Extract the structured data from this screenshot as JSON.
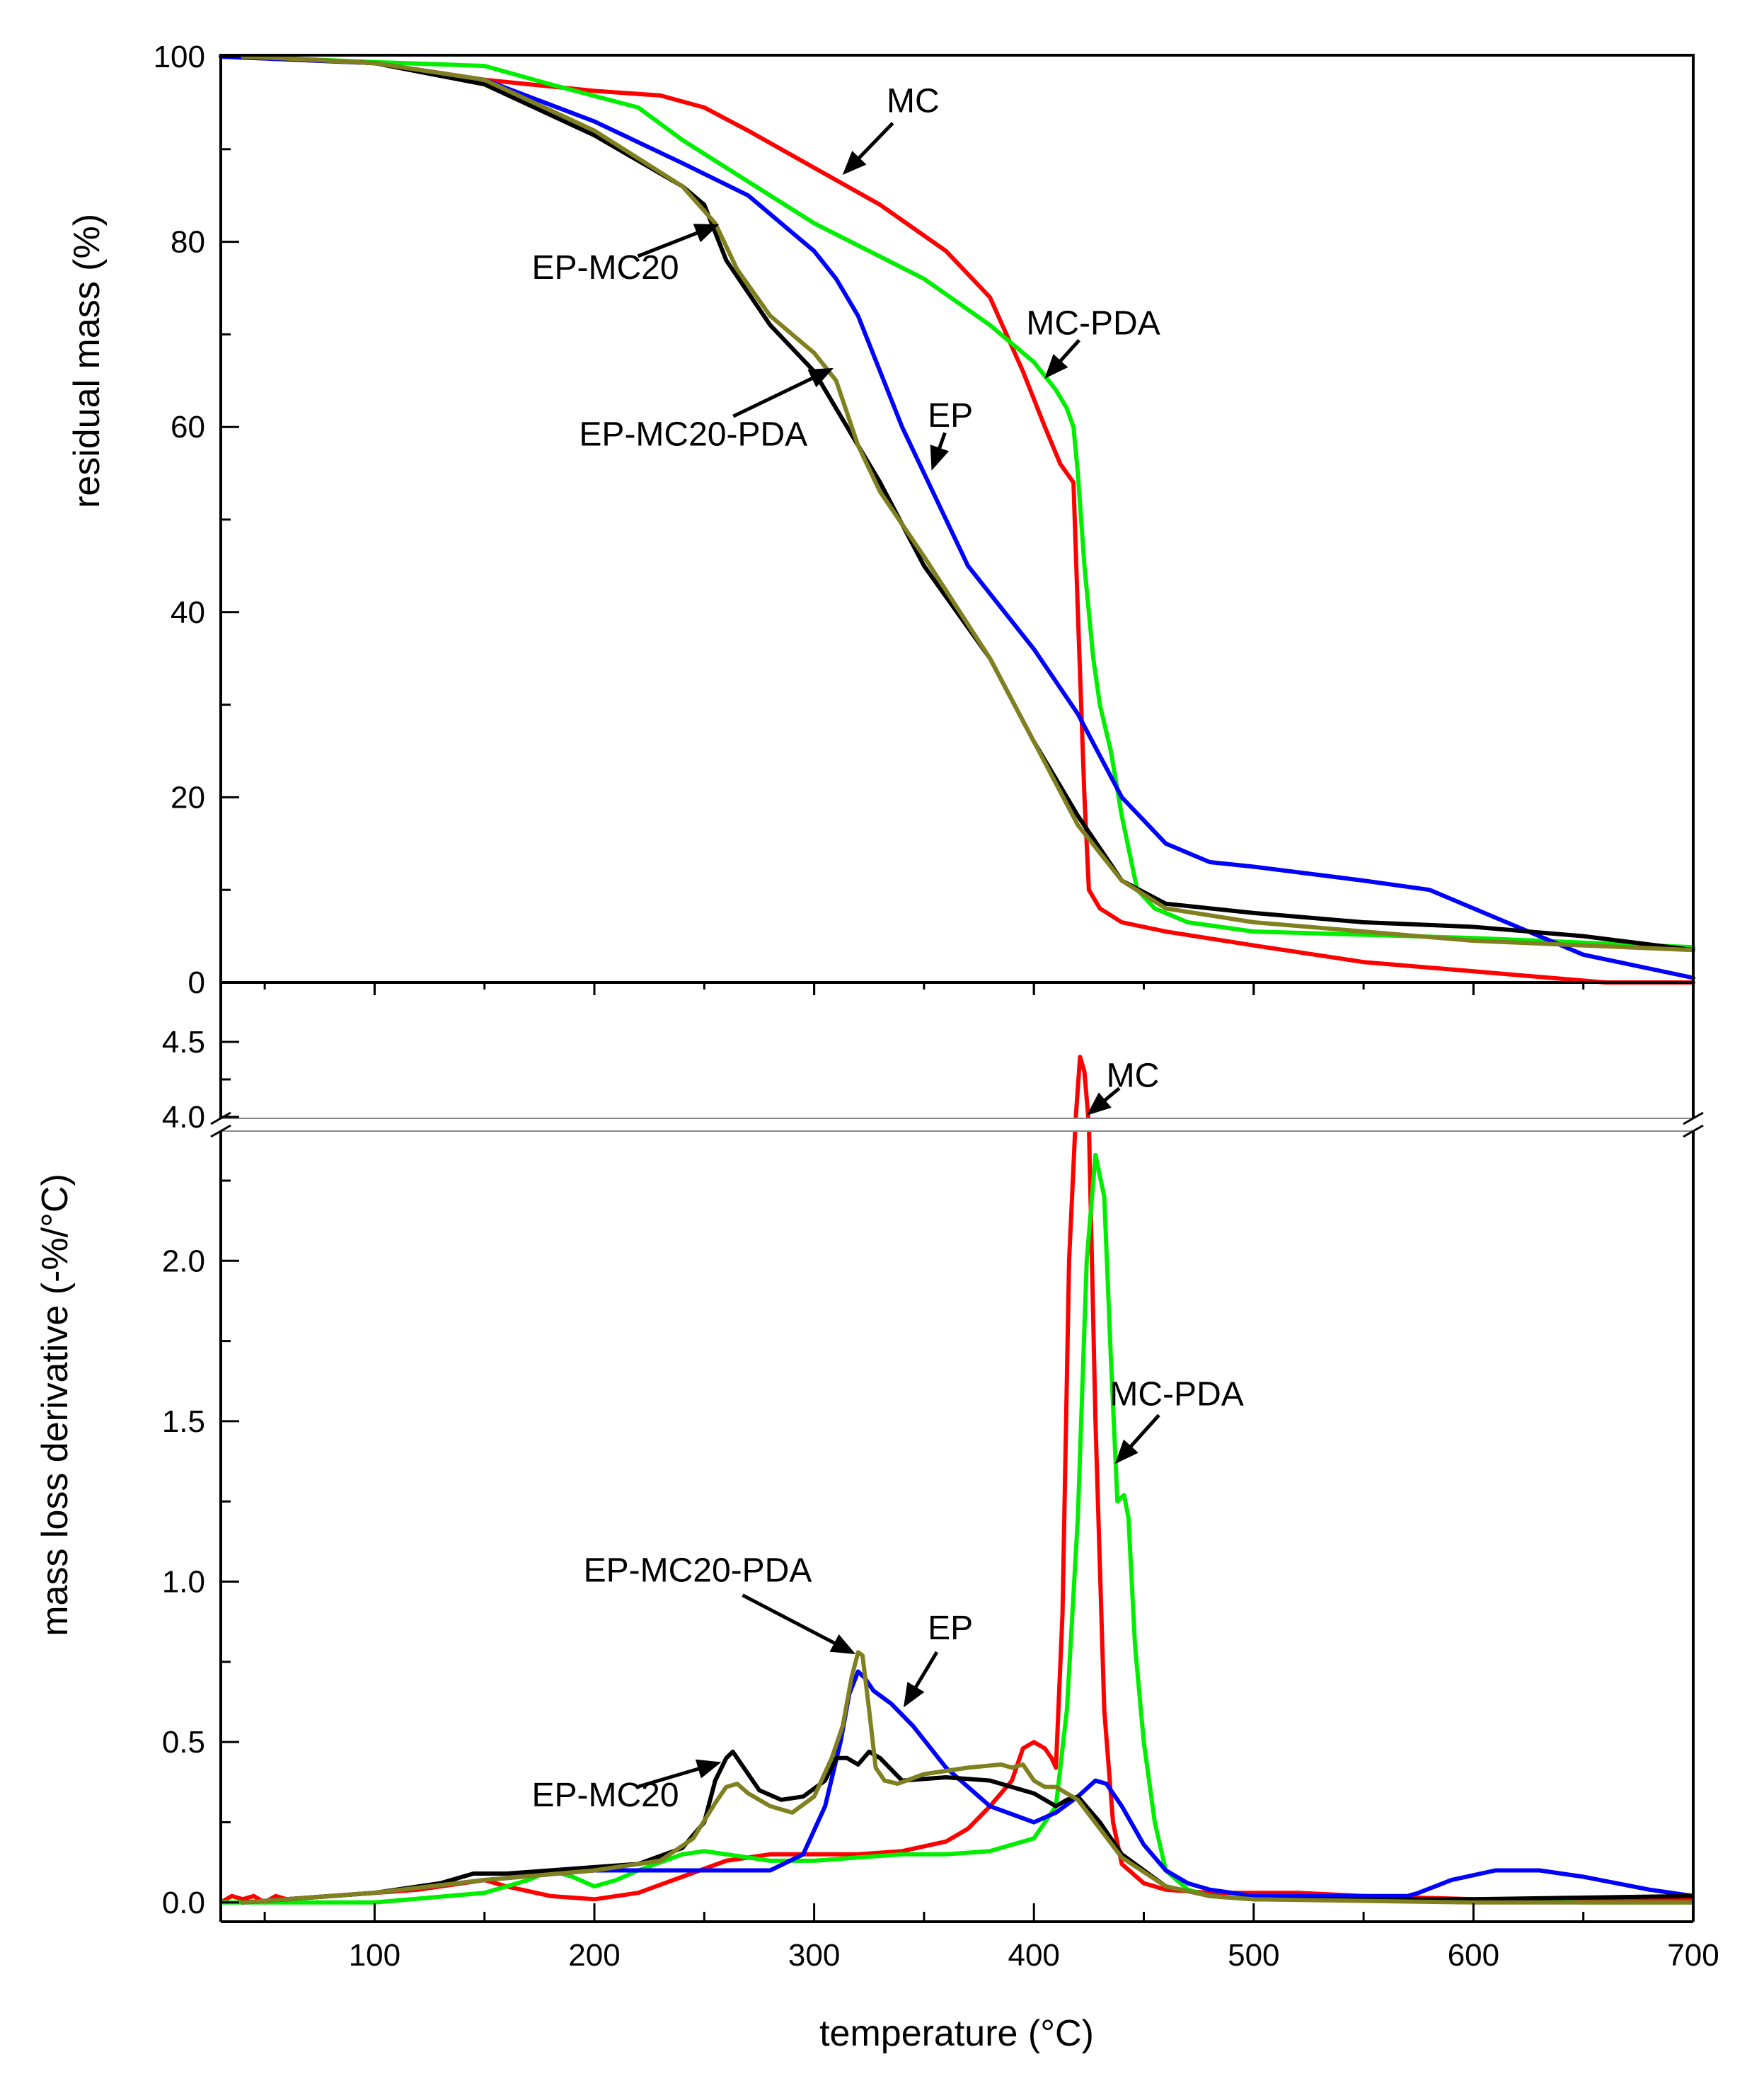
{
  "chart_data": [
    {
      "type": "line",
      "panel": "top",
      "xlabel": "",
      "ylabel": "residual mass (%)",
      "xlim": [
        30,
        700
      ],
      "ylim": [
        0,
        100
      ],
      "xticks": [
        100,
        200,
        300,
        400,
        500,
        600,
        700
      ],
      "yticks": [
        0,
        20,
        40,
        60,
        80,
        100
      ],
      "yticks_minor": [
        10,
        30,
        50,
        70,
        90
      ],
      "series": [
        {
          "name": "MC",
          "color": "#ff0000",
          "x": [
            30,
            60,
            100,
            150,
            200,
            230,
            250,
            270,
            300,
            330,
            360,
            380,
            395,
            405,
            412,
            418,
            420,
            423,
            425,
            430,
            440,
            460,
            500,
            550,
            600,
            650,
            660,
            700
          ],
          "y": [
            100,
            99.7,
            99.3,
            97.5,
            96.3,
            95.8,
            94.5,
            92,
            88,
            84,
            79,
            74,
            66,
            60,
            56,
            54,
            40,
            20,
            10,
            8,
            6.5,
            5.5,
            4,
            2.2,
            1.2,
            0.2,
            0,
            0
          ]
        },
        {
          "name": "MC-PDA",
          "color": "#00ee00",
          "x": [
            30,
            60,
            100,
            150,
            180,
            220,
            240,
            260,
            300,
            350,
            380,
            400,
            410,
            415,
            418,
            420,
            423,
            427,
            430,
            435,
            440,
            447,
            455,
            470,
            500,
            600,
            700
          ],
          "y": [
            100,
            99.8,
            99.4,
            99,
            97,
            94.5,
            91,
            88,
            82,
            76,
            71,
            67,
            64,
            62,
            60,
            55,
            45,
            35,
            30,
            25,
            18,
            10,
            8,
            6.5,
            5.5,
            4.8,
            3.8
          ]
        },
        {
          "name": "EP",
          "color": "#0000ff",
          "x": [
            30,
            60,
            100,
            150,
            200,
            240,
            270,
            300,
            310,
            320,
            330,
            340,
            350,
            370,
            400,
            420,
            440,
            460,
            480,
            500,
            550,
            580,
            620,
            650,
            700
          ],
          "y": [
            100,
            99.7,
            99.3,
            97.5,
            93,
            88.5,
            85,
            79,
            76,
            72,
            66,
            60,
            55,
            45,
            36,
            29,
            20,
            15,
            13,
            12.5,
            11,
            10,
            6,
            3,
            0.5
          ]
        },
        {
          "name": "EP-MC20",
          "color": "#000000",
          "x": [
            40,
            60,
            100,
            150,
            200,
            240,
            250,
            260,
            280,
            300,
            320,
            330,
            350,
            380,
            400,
            420,
            440,
            460,
            500,
            550,
            600,
            650,
            700
          ],
          "y": [
            100,
            99.8,
            99.3,
            97,
            91.5,
            86,
            84,
            78,
            71,
            66,
            58,
            54,
            45,
            35,
            26,
            18,
            11,
            8.5,
            7.5,
            6.5,
            6,
            5,
            3.5
          ]
        },
        {
          "name": "EP-MC20-PDA",
          "color": "#808020",
          "x": [
            40,
            60,
            100,
            150,
            200,
            240,
            255,
            265,
            280,
            300,
            310,
            320,
            330,
            350,
            380,
            400,
            420,
            440,
            460,
            500,
            600,
            700
          ],
          "y": [
            100,
            99.8,
            99.3,
            97.5,
            92,
            86,
            82,
            77,
            72,
            68,
            65,
            58,
            53,
            46,
            35,
            26,
            17,
            11,
            8,
            6.5,
            4.5,
            3.5
          ]
        }
      ],
      "annotations": [
        {
          "text": "MC",
          "x": 312,
          "y": 87,
          "text_x": 345,
          "text_y": 94
        },
        {
          "text": "MC-PDA",
          "x": 404,
          "y": 65,
          "text_x": 427,
          "text_y": 70
        },
        {
          "text": "EP",
          "x": 353,
          "y": 55,
          "text_x": 362,
          "text_y": 60
        },
        {
          "text": "EP-MC20",
          "x": 258,
          "y": 82,
          "text_x": 205,
          "text_y": 76
        },
        {
          "text": "EP-MC20-PDA",
          "x": 310,
          "y": 66.5,
          "text_x": 245,
          "text_y": 58
        }
      ]
    },
    {
      "type": "line",
      "panel": "bottom",
      "xlabel": "temperature (°C)",
      "ylabel": "mass loss derivative (-%/°C)",
      "xlim": [
        30,
        700
      ],
      "ylim_lower": [
        -0.06,
        2.4
      ],
      "ylim_upper": [
        3.6,
        4.5
      ],
      "axis_break": [
        2.4,
        3.6
      ],
      "xticks": [
        100,
        200,
        300,
        400,
        500,
        600,
        700
      ],
      "xticks_minor": [
        50,
        150,
        250,
        350,
        450,
        550,
        650
      ],
      "yticks_lower": [
        0.0,
        0.5,
        1.0,
        1.5,
        2.0
      ],
      "yticks_lower_labels": [
        "0.0",
        "0.5",
        "1.0",
        "1.5",
        "2.0"
      ],
      "yticks_upper": [
        4.0,
        4.5
      ],
      "yticks_upper_labels": [
        "4.0",
        "4.5"
      ],
      "series": [
        {
          "name": "MC",
          "color": "#ff0000",
          "x": [
            30,
            35,
            40,
            45,
            50,
            55,
            60,
            80,
            100,
            120,
            140,
            150,
            160,
            180,
            200,
            220,
            240,
            260,
            280,
            300,
            320,
            340,
            360,
            370,
            380,
            390,
            395,
            400,
            405,
            408,
            410,
            413,
            416,
            419,
            421,
            423,
            425,
            428,
            432,
            436,
            440,
            450,
            460,
            480,
            500,
            520,
            550,
            600,
            650,
            700
          ],
          "y": [
            0.0,
            0.02,
            0.01,
            0.02,
            0.0,
            0.02,
            0.01,
            0.02,
            0.03,
            0.04,
            0.06,
            0.07,
            0.05,
            0.02,
            0.01,
            0.03,
            0.08,
            0.13,
            0.15,
            0.15,
            0.15,
            0.16,
            0.19,
            0.23,
            0.3,
            0.38,
            0.48,
            0.5,
            0.48,
            0.45,
            0.42,
            0.9,
            2.0,
            3.8,
            4.4,
            4.3,
            3.2,
            1.5,
            0.6,
            0.25,
            0.12,
            0.06,
            0.04,
            0.03,
            0.03,
            0.03,
            0.02,
            0.01,
            0.01,
            0.01
          ]
        },
        {
          "name": "MC-PDA",
          "color": "#00ee00",
          "x": [
            30,
            50,
            100,
            150,
            170,
            180,
            190,
            200,
            210,
            220,
            240,
            250,
            260,
            270,
            280,
            300,
            320,
            340,
            360,
            380,
            400,
            410,
            415,
            420,
            424,
            428,
            432,
            435,
            438,
            441,
            443,
            446,
            450,
            455,
            460,
            470,
            480,
            500,
            550,
            600,
            650,
            700
          ],
          "y": [
            0.0,
            0.0,
            0.0,
            0.03,
            0.07,
            0.1,
            0.08,
            0.05,
            0.07,
            0.1,
            0.15,
            0.16,
            0.15,
            0.14,
            0.13,
            0.13,
            0.14,
            0.15,
            0.15,
            0.16,
            0.2,
            0.3,
            0.6,
            1.2,
            2.0,
            2.33,
            2.2,
            1.7,
            1.25,
            1.27,
            1.2,
            0.8,
            0.5,
            0.25,
            0.1,
            0.04,
            0.02,
            0.01,
            0.01,
            0.01,
            0.0,
            0.0
          ]
        },
        {
          "name": "EP",
          "color": "#0000ff",
          "x": [
            40,
            100,
            150,
            200,
            220,
            240,
            260,
            280,
            295,
            305,
            312,
            316,
            320,
            323,
            327,
            335,
            345,
            360,
            380,
            400,
            410,
            420,
            428,
            433,
            440,
            450,
            460,
            470,
            480,
            500,
            550,
            560,
            570,
            575,
            590,
            610,
            630,
            650,
            680,
            700
          ],
          "y": [
            0.0,
            0.03,
            0.07,
            0.1,
            0.1,
            0.1,
            0.1,
            0.1,
            0.15,
            0.3,
            0.5,
            0.65,
            0.72,
            0.7,
            0.66,
            0.62,
            0.55,
            0.42,
            0.3,
            0.25,
            0.28,
            0.33,
            0.38,
            0.37,
            0.3,
            0.18,
            0.1,
            0.06,
            0.04,
            0.02,
            0.02,
            0.02,
            0.02,
            0.03,
            0.07,
            0.1,
            0.1,
            0.08,
            0.04,
            0.02
          ]
        },
        {
          "name": "EP-MC20",
          "color": "#000000",
          "x": [
            40,
            60,
            100,
            130,
            140,
            145,
            150,
            160,
            180,
            200,
            220,
            240,
            250,
            255,
            260,
            263,
            268,
            275,
            285,
            295,
            305,
            310,
            315,
            320,
            325,
            330,
            340,
            360,
            380,
            400,
            410,
            415,
            420,
            430,
            440,
            460,
            480,
            500,
            600,
            700
          ],
          "y": [
            0.0,
            0.01,
            0.03,
            0.06,
            0.08,
            0.09,
            0.09,
            0.09,
            0.1,
            0.11,
            0.12,
            0.17,
            0.25,
            0.38,
            0.45,
            0.47,
            0.42,
            0.35,
            0.32,
            0.33,
            0.38,
            0.45,
            0.45,
            0.43,
            0.47,
            0.45,
            0.38,
            0.39,
            0.38,
            0.34,
            0.3,
            0.32,
            0.33,
            0.25,
            0.15,
            0.05,
            0.02,
            0.01,
            0.01,
            0.02
          ]
        },
        {
          "name": "EP-MC20-PDA",
          "color": "#808020",
          "x": [
            40,
            100,
            150,
            200,
            230,
            245,
            255,
            260,
            265,
            270,
            280,
            290,
            300,
            308,
            313,
            317,
            320,
            322,
            325,
            328,
            332,
            338,
            350,
            370,
            385,
            390,
            395,
            400,
            405,
            410,
            420,
            430,
            440,
            460,
            480,
            500,
            600,
            700
          ],
          "y": [
            0.0,
            0.03,
            0.07,
            0.1,
            0.13,
            0.2,
            0.31,
            0.36,
            0.37,
            0.34,
            0.3,
            0.28,
            0.33,
            0.45,
            0.55,
            0.7,
            0.78,
            0.77,
            0.6,
            0.42,
            0.38,
            0.37,
            0.4,
            0.42,
            0.43,
            0.42,
            0.43,
            0.38,
            0.36,
            0.36,
            0.32,
            0.23,
            0.14,
            0.05,
            0.02,
            0.01,
            0.0,
            0.0
          ]
        }
      ],
      "annotations": [
        {
          "text": "MC",
          "x": 423,
          "y": 3.97,
          "text_x": 445,
          "text_y": 4.2
        },
        {
          "text": "MC-PDA",
          "x": 436,
          "y": 1.36,
          "text_x": 465,
          "text_y": 1.55
        },
        {
          "text": "EP",
          "x": 340,
          "y": 0.6,
          "text_x": 362,
          "text_y": 0.82
        },
        {
          "text": "EP-MC20",
          "x": 259,
          "y": 0.44,
          "text_x": 205,
          "text_y": 0.3
        },
        {
          "text": "EP-MC20-PDA",
          "x": 320,
          "y": 0.77,
          "text_x": 247,
          "text_y": 1.0
        }
      ]
    }
  ]
}
